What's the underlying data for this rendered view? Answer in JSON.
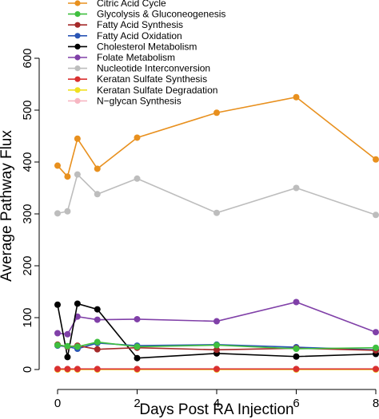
{
  "chart_data": {
    "type": "line",
    "title": "",
    "xlabel": "Days Post RA Injection",
    "ylabel": "Average Pathway Flux",
    "xlim": [
      0,
      8
    ],
    "ylim": [
      0,
      600
    ],
    "x_ticks": [
      0,
      2,
      4,
      6,
      8
    ],
    "y_ticks": [
      0,
      100,
      200,
      300,
      400,
      500,
      600
    ],
    "x_tick_labels": [
      "0",
      "2",
      "4",
      "6",
      "8"
    ],
    "y_tick_labels": [
      "0",
      "100",
      "200",
      "300",
      "400",
      "500",
      "600"
    ],
    "legend_position": "top-inside",
    "grid": false,
    "x": [
      0,
      0.25,
      0.5,
      1,
      2,
      4,
      6,
      8
    ],
    "series": [
      {
        "name": "Citric Acid Cycle",
        "color": "#e8901e",
        "values": [
          393,
          372,
          445,
          387,
          447,
          495,
          525,
          405
        ]
      },
      {
        "name": "Glycolysis & Gluconeogenesis",
        "color": "#3fbf3f",
        "values": [
          47,
          45,
          44,
          53,
          44,
          47,
          40,
          42
        ]
      },
      {
        "name": "Fatty Acid Synthesis",
        "color": "#a52a2a",
        "values": [
          48,
          44,
          46,
          39,
          42,
          38,
          41,
          37
        ]
      },
      {
        "name": "Fatty Acid Oxidation",
        "color": "#2a55b5",
        "values": [
          46,
          44,
          40,
          51,
          46,
          48,
          43,
          38
        ]
      },
      {
        "name": "Cholesterol Metabolism",
        "color": "#000000",
        "values": [
          125,
          24,
          127,
          116,
          22,
          31,
          25,
          30
        ]
      },
      {
        "name": "Folate Metabolism",
        "color": "#8040a8",
        "values": [
          70,
          68,
          102,
          96,
          97,
          93,
          130,
          72
        ]
      },
      {
        "name": "Nucleotide Interconversion",
        "color": "#bdbdbd",
        "values": [
          301,
          305,
          376,
          338,
          368,
          302,
          350,
          298
        ]
      },
      {
        "name": "Keratan Sulfate Synthesis",
        "color": "#d93030",
        "values": [
          1,
          1,
          1,
          1,
          1,
          1,
          1,
          1
        ]
      },
      {
        "name": "Keratan Sulfate Degradation",
        "color": "#f0e020",
        "values": [
          0,
          0,
          0,
          0,
          0,
          0,
          0,
          0
        ]
      },
      {
        "name": "N−glycan Synthesis",
        "color": "#f7b6c2",
        "values": [
          0,
          0,
          0,
          0,
          0,
          0,
          0,
          0
        ]
      }
    ]
  }
}
